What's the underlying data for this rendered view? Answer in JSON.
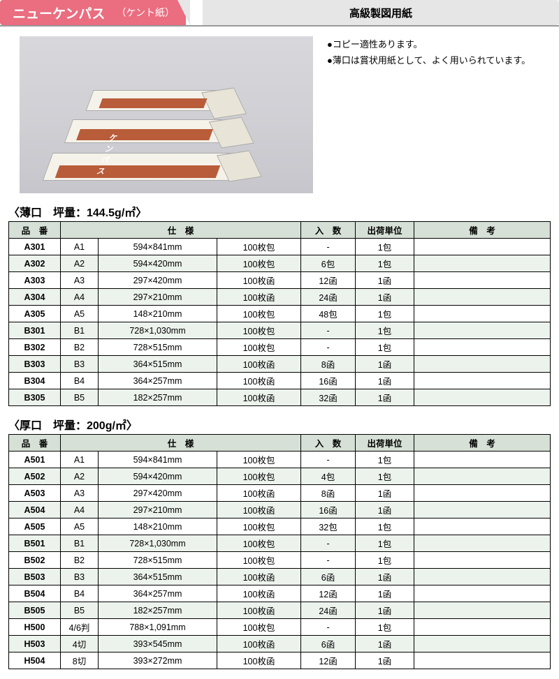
{
  "header": {
    "title": "ニューケンパス",
    "subtitle": "（ケント紙）",
    "category": "高級製図用紙",
    "colors": {
      "accent": "#ea6d80",
      "catBg": "#e6e6e6"
    }
  },
  "bullets": [
    "●コピー適性あります。",
    "●薄口は賞状用紙として、よく用いられています。"
  ],
  "tables": [
    {
      "title": "〈薄口　坪量：144.5g/㎡〉",
      "headers": [
        "品　番",
        "仕　様",
        "入　数",
        "出荷単位",
        "備　考"
      ],
      "rows": [
        {
          "code": "A301",
          "size": "A1",
          "dim": "594×841mm",
          "pack": "100枚包",
          "qty": "-",
          "ship": "1包",
          "note": "",
          "alt": false
        },
        {
          "code": "A302",
          "size": "A2",
          "dim": "594×420mm",
          "pack": "100枚包",
          "qty": "6包",
          "ship": "1包",
          "note": "",
          "alt": true
        },
        {
          "code": "A303",
          "size": "A3",
          "dim": "297×420mm",
          "pack": "100枚函",
          "qty": "12函",
          "ship": "1函",
          "note": "",
          "alt": false
        },
        {
          "code": "A304",
          "size": "A4",
          "dim": "297×210mm",
          "pack": "100枚函",
          "qty": "24函",
          "ship": "1函",
          "note": "",
          "alt": true
        },
        {
          "code": "A305",
          "size": "A5",
          "dim": "148×210mm",
          "pack": "100枚包",
          "qty": "48包",
          "ship": "1包",
          "note": "",
          "alt": false
        },
        {
          "code": "B301",
          "size": "B1",
          "dim": "728×1,030mm",
          "pack": "100枚包",
          "qty": "-",
          "ship": "1包",
          "note": "",
          "alt": true
        },
        {
          "code": "B302",
          "size": "B2",
          "dim": "728×515mm",
          "pack": "100枚包",
          "qty": "-",
          "ship": "1包",
          "note": "",
          "alt": false
        },
        {
          "code": "B303",
          "size": "B3",
          "dim": "364×515mm",
          "pack": "100枚函",
          "qty": "8函",
          "ship": "1函",
          "note": "",
          "alt": true
        },
        {
          "code": "B304",
          "size": "B4",
          "dim": "364×257mm",
          "pack": "100枚函",
          "qty": "16函",
          "ship": "1函",
          "note": "",
          "alt": false
        },
        {
          "code": "B305",
          "size": "B5",
          "dim": "182×257mm",
          "pack": "100枚函",
          "qty": "32函",
          "ship": "1函",
          "note": "",
          "alt": true
        }
      ]
    },
    {
      "title": "〈厚口　坪量：200g/㎡〉",
      "headers": [
        "品　番",
        "仕　様",
        "入　数",
        "出荷単位",
        "備　考"
      ],
      "rows": [
        {
          "code": "A501",
          "size": "A1",
          "dim": "594×841mm",
          "pack": "100枚包",
          "qty": "-",
          "ship": "1包",
          "note": "",
          "alt": false
        },
        {
          "code": "A502",
          "size": "A2",
          "dim": "594×420mm",
          "pack": "100枚包",
          "qty": "4包",
          "ship": "1包",
          "note": "",
          "alt": true
        },
        {
          "code": "A503",
          "size": "A3",
          "dim": "297×420mm",
          "pack": "100枚函",
          "qty": "8函",
          "ship": "1函",
          "note": "",
          "alt": false
        },
        {
          "code": "A504",
          "size": "A4",
          "dim": "297×210mm",
          "pack": "100枚函",
          "qty": "16函",
          "ship": "1函",
          "note": "",
          "alt": true
        },
        {
          "code": "A505",
          "size": "A5",
          "dim": "148×210mm",
          "pack": "100枚包",
          "qty": "32包",
          "ship": "1包",
          "note": "",
          "alt": false
        },
        {
          "code": "B501",
          "size": "B1",
          "dim": "728×1,030mm",
          "pack": "100枚包",
          "qty": "-",
          "ship": "1包",
          "note": "",
          "alt": true
        },
        {
          "code": "B502",
          "size": "B2",
          "dim": "728×515mm",
          "pack": "100枚包",
          "qty": "-",
          "ship": "1包",
          "note": "",
          "alt": false
        },
        {
          "code": "B503",
          "size": "B3",
          "dim": "364×515mm",
          "pack": "100枚函",
          "qty": "6函",
          "ship": "1函",
          "note": "",
          "alt": true
        },
        {
          "code": "B504",
          "size": "B4",
          "dim": "364×257mm",
          "pack": "100枚函",
          "qty": "12函",
          "ship": "1函",
          "note": "",
          "alt": false
        },
        {
          "code": "B505",
          "size": "B5",
          "dim": "182×257mm",
          "pack": "100枚函",
          "qty": "24函",
          "ship": "1函",
          "note": "",
          "alt": true
        },
        {
          "code": "H500",
          "size": "4/6判",
          "dim": "788×1,091mm",
          "pack": "100枚包",
          "qty": "-",
          "ship": "1包",
          "note": "",
          "alt": false
        },
        {
          "code": "H503",
          "size": "4切",
          "dim": "393×545mm",
          "pack": "100枚函",
          "qty": "6函",
          "ship": "1函",
          "note": "",
          "alt": true
        },
        {
          "code": "H504",
          "size": "8切",
          "dim": "393×272mm",
          "pack": "100枚函",
          "qty": "12函",
          "ship": "1函",
          "note": "",
          "alt": false
        }
      ]
    }
  ]
}
